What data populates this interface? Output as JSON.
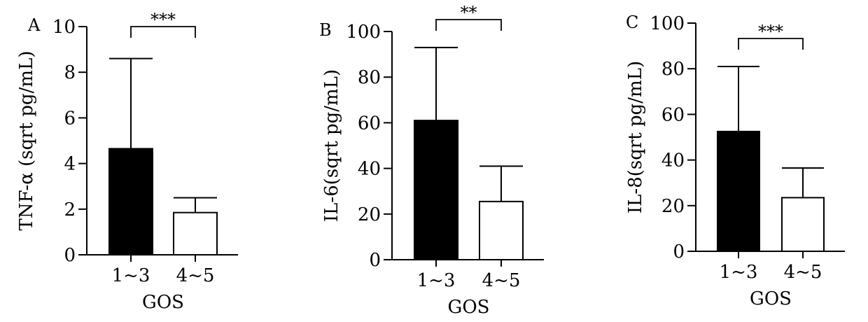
{
  "chart_data": [
    {
      "type": "bar",
      "panel_label": "A",
      "categories": [
        "1~3",
        "4~5"
      ],
      "values": [
        4.65,
        1.85
      ],
      "error_upper": [
        8.6,
        2.5
      ],
      "bar_colors": [
        "#000000",
        "#ffffff"
      ],
      "xlabel": "GOS",
      "ylabel": "TNF-α (sqrt pg/mL)",
      "ylim": [
        0,
        10
      ],
      "yticks": [
        0,
        2,
        4,
        6,
        8,
        10
      ],
      "significance": "***",
      "grid": false
    },
    {
      "type": "bar",
      "panel_label": "B",
      "categories": [
        "1~3",
        "4~5"
      ],
      "values": [
        61,
        25.5
      ],
      "error_upper": [
        93,
        41
      ],
      "bar_colors": [
        "#000000",
        "#ffffff"
      ],
      "xlabel": "GOS",
      "ylabel": "IL-6(sqrt pg/mL)",
      "ylim": [
        0,
        100
      ],
      "yticks": [
        0,
        20,
        40,
        60,
        80,
        100
      ],
      "significance": "**",
      "grid": false
    },
    {
      "type": "bar",
      "panel_label": "C",
      "categories": [
        "1~3",
        "4~5"
      ],
      "values": [
        52.5,
        23.5
      ],
      "error_upper": [
        81,
        36.5
      ],
      "bar_colors": [
        "#000000",
        "#ffffff"
      ],
      "xlabel": "GOS",
      "ylabel": "IL-8(sqrt pg/mL)",
      "ylim": [
        0,
        100
      ],
      "yticks": [
        0,
        20,
        40,
        60,
        80,
        100
      ],
      "significance": "***",
      "grid": false
    }
  ]
}
